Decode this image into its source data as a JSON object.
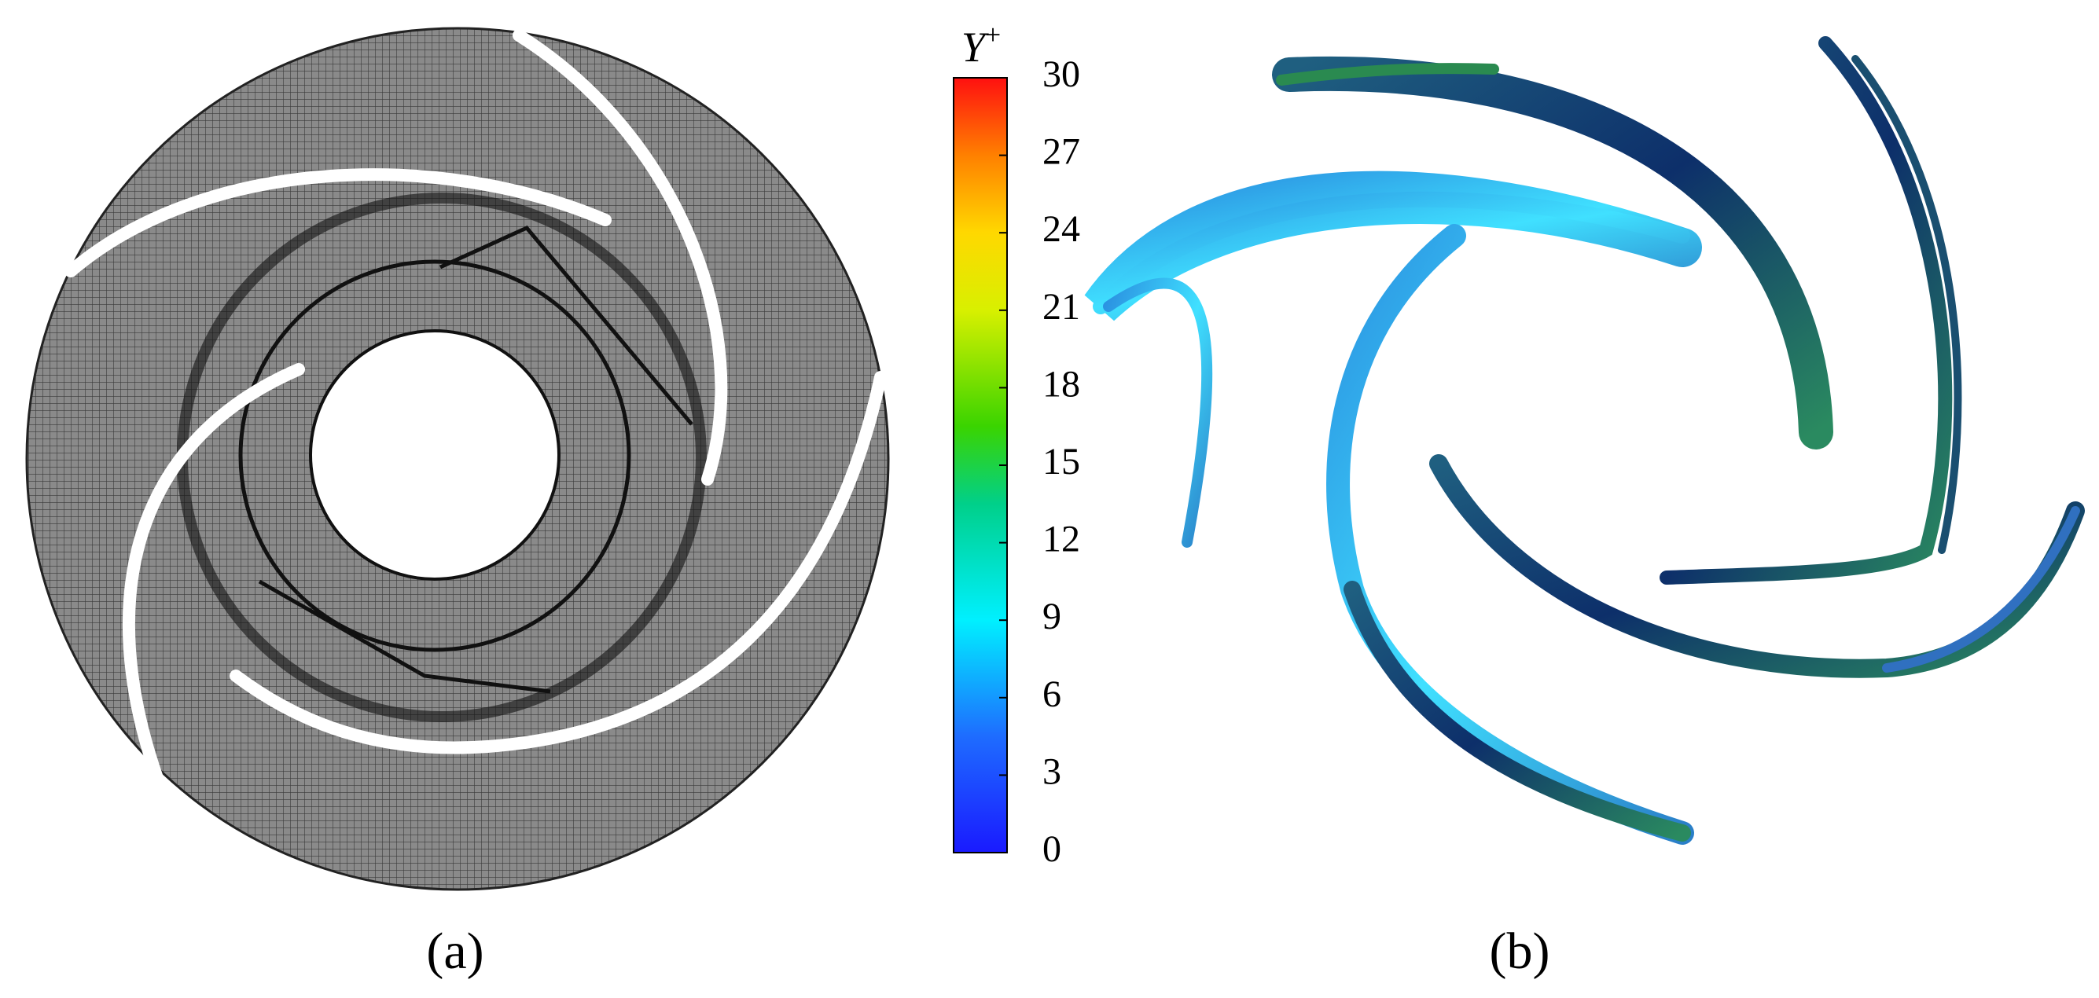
{
  "colorbar": {
    "label": "Y",
    "label_sup": "+",
    "lim": [
      0,
      30
    ],
    "ticks": [
      0,
      3,
      6,
      9,
      12,
      15,
      18,
      21,
      24,
      27,
      30
    ]
  },
  "panels": [
    {
      "label": "(a)"
    },
    {
      "label": "(b)"
    }
  ]
}
